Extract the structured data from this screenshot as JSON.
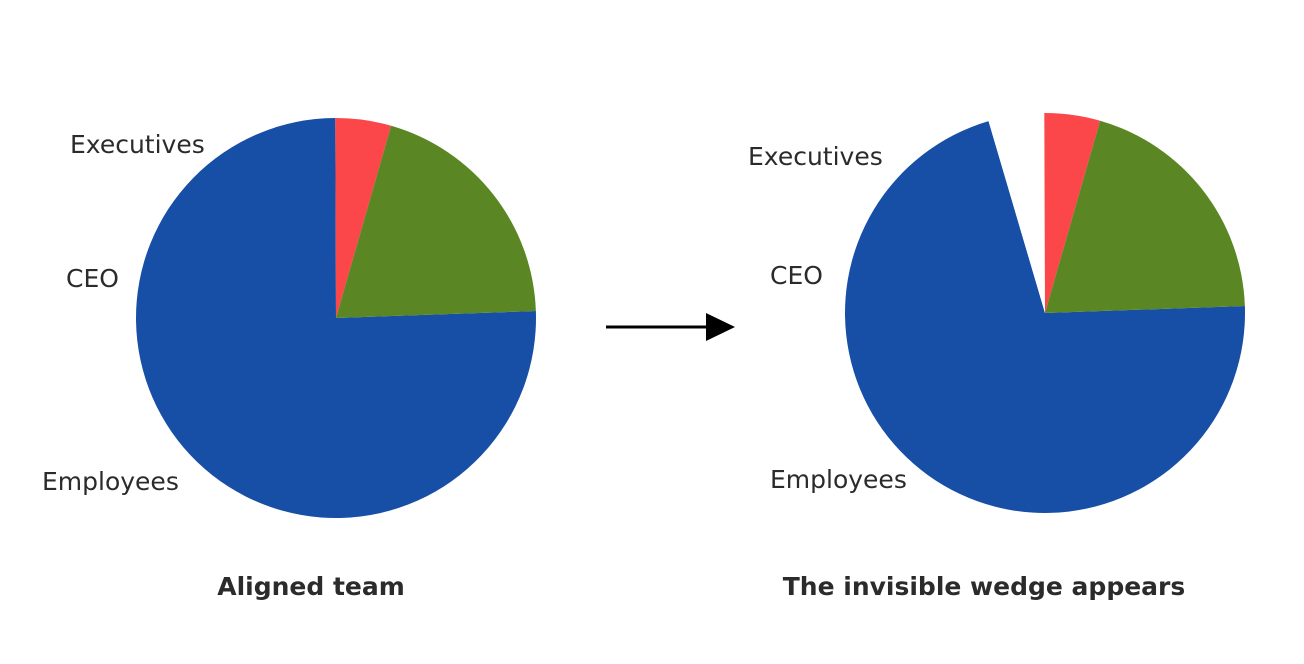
{
  "chart_data": [
    {
      "type": "pie",
      "title": "Aligned team",
      "slices": [
        {
          "label": "Employees",
          "value": 75.5,
          "color": "#174ea6"
        },
        {
          "label": "CEO",
          "value": 4.5,
          "color": "#fb4749"
        },
        {
          "label": "Executives",
          "value": 20.0,
          "color": "#5a8723"
        }
      ]
    },
    {
      "type": "pie",
      "title": "The invisible wedge appears",
      "slices": [
        {
          "label": "Employees",
          "value": 71.0,
          "color": "#174ea6"
        },
        {
          "label": "",
          "value": 4.5,
          "color": "#ffffff",
          "note_hidden": true
        },
        {
          "label": "CEO",
          "value": 4.5,
          "color": "#fb4749"
        },
        {
          "label": "Executives",
          "value": 20.0,
          "color": "#5a8723"
        }
      ]
    }
  ],
  "arrow": {
    "color": "#000000"
  }
}
